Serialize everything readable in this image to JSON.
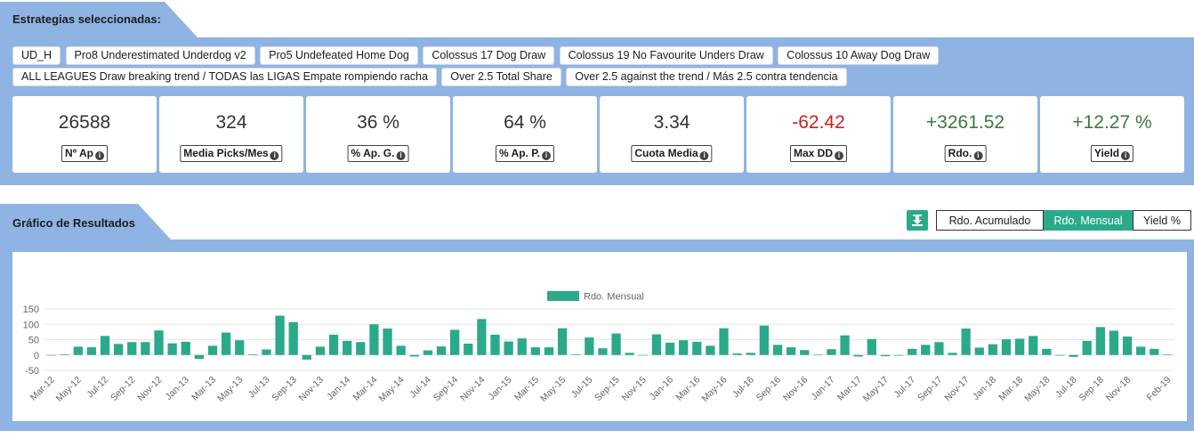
{
  "strategies_header": "Estrategias seleccionadas:",
  "strategy_tags": [
    "UD_H",
    "Pro8 Underestimated Underdog v2",
    "Pro5 Undefeated Home Dog",
    "Colossus 17 Dog Draw",
    "Colossus 19 No Favourite Unders Draw",
    "Colossus 10 Away Dog Draw",
    "ALL LEAGUES Draw breaking trend / TODAS las LIGAS Empate rompiendo racha",
    "Over 2.5 Total Share",
    "Over 2.5 against the trend / Más 2.5 contra tendencia"
  ],
  "stats": [
    {
      "value": "26588",
      "label": "Nº Ap",
      "tone": "neutral"
    },
    {
      "value": "324",
      "label": "Media Picks/Mes",
      "tone": "neutral"
    },
    {
      "value": "36 %",
      "label": "% Ap. G.",
      "tone": "neutral"
    },
    {
      "value": "64 %",
      "label": "% Ap. P.",
      "tone": "neutral"
    },
    {
      "value": "3.34",
      "label": "Cuota Media",
      "tone": "neutral"
    },
    {
      "value": "-62.42",
      "label": "Max DD",
      "tone": "neg"
    },
    {
      "value": "+3261.52",
      "label": "Rdo.",
      "tone": "pos"
    },
    {
      "value": "+12.27 %",
      "label": "Yield",
      "tone": "pos"
    }
  ],
  "results_header": "Gráfico de Resultados",
  "toggle": {
    "download_icon": "download-icon",
    "options": [
      "Rdo. Acumulado",
      "Rdo. Mensual",
      "Yield %"
    ],
    "active": "Rdo. Mensual"
  },
  "colors": {
    "accent": "#2aaa8a",
    "panel": "#8fb4e3",
    "negative": "#cc1f1f",
    "positive": "#3d7a3d"
  },
  "chart_data": {
    "type": "bar",
    "legend": "Rdo. Mensual",
    "legend_position": "top-center",
    "ylim": [
      -50,
      150
    ],
    "yticks": [
      150,
      100,
      50,
      0,
      -50
    ],
    "grid": true,
    "xtick_labels": [
      "Mar-12",
      "May-12",
      "Jul-12",
      "Sep-12",
      "Nov-12",
      "Jan-13",
      "Mar-13",
      "May-13",
      "Jul-13",
      "Sep-13",
      "Nov-13",
      "Jan-14",
      "Mar-14",
      "May-14",
      "Jul-14",
      "Sep-14",
      "Nov-14",
      "Jan-15",
      "Mar-15",
      "May-15",
      "Jul-15",
      "Sep-15",
      "Nov-15",
      "Jan-16",
      "Mar-16",
      "May-16",
      "Jul-16",
      "Sep-16",
      "Nov-16",
      "Jan-17",
      "Mar-17",
      "May-17",
      "Jul-17",
      "Sep-17",
      "Nov-17",
      "Jan-18",
      "Mar-18",
      "May-18",
      "Jul-18",
      "Sep-18",
      "Nov-18",
      "Feb-19"
    ],
    "series": [
      {
        "name": "Rdo. Mensual",
        "values": [
          0,
          2,
          27,
          25,
          62,
          36,
          42,
          42,
          80,
          38,
          43,
          -13,
          30,
          73,
          48,
          2,
          18,
          128,
          107,
          -15,
          27,
          66,
          46,
          42,
          100,
          86,
          30,
          -5,
          15,
          28,
          82,
          37,
          117,
          66,
          44,
          54,
          25,
          25,
          87,
          2,
          57,
          22,
          70,
          7,
          0,
          67,
          40,
          48,
          43,
          30,
          87,
          5,
          7,
          96,
          33,
          25,
          16,
          1,
          19,
          64,
          -5,
          52,
          -4,
          -2,
          20,
          33,
          42,
          7,
          86,
          24,
          35,
          51,
          53,
          62,
          20,
          -2,
          -6,
          46,
          91,
          79,
          60,
          27,
          20,
          1
        ]
      }
    ]
  }
}
